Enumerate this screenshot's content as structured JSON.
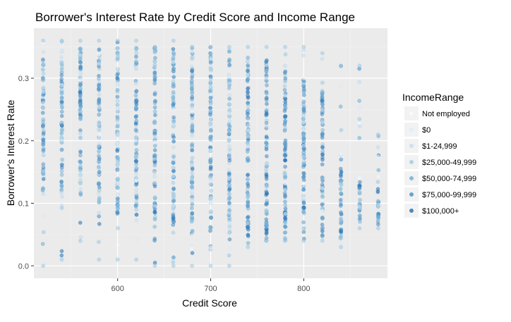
{
  "chart_data": {
    "type": "scatter",
    "title": "Borrower's Interest Rate by Credit Score and Income Range",
    "xlabel": "Credit Score",
    "ylabel": "Borrower's Interest Rate",
    "xlim": [
      510,
      890
    ],
    "ylim": [
      -0.02,
      0.38
    ],
    "x_ticks": [
      {
        "value": 600,
        "label": "600"
      },
      {
        "value": 700,
        "label": "700"
      },
      {
        "value": 800,
        "label": "800"
      }
    ],
    "y_ticks": [
      {
        "value": 0.0,
        "label": "0.0"
      },
      {
        "value": 0.1,
        "label": "0.1"
      },
      {
        "value": 0.2,
        "label": "0.2"
      },
      {
        "value": 0.3,
        "label": "0.3"
      }
    ],
    "background": "#ebebeb",
    "grid": true,
    "legend": {
      "title": "IncomeRange",
      "placement": "right",
      "entries": [
        {
          "name": "Not employed",
          "color": "#f7fbff"
        },
        {
          "name": "$0",
          "color": "#deebf7"
        },
        {
          "name": "$1-24,999",
          "color": "#c6dbef"
        },
        {
          "name": "$25,000-49,999",
          "color": "#9ecae1"
        },
        {
          "name": "$50,000-74,999",
          "color": "#6baed6"
        },
        {
          "name": "$75,000-99,999",
          "color": "#4292c6"
        },
        {
          "name": "$100,000+",
          "color": "#2171b5"
        }
      ]
    },
    "columns": [
      {
        "x": 520,
        "ymin": 0.0,
        "ymax": 0.36,
        "dense_min": 0.12,
        "dense_max": 0.35
      },
      {
        "x": 540,
        "ymin": 0.01,
        "ymax": 0.36,
        "dense_min": 0.12,
        "dense_max": 0.35
      },
      {
        "x": 560,
        "ymin": 0.04,
        "ymax": 0.36,
        "dense_min": 0.1,
        "dense_max": 0.35
      },
      {
        "x": 580,
        "ymin": 0.01,
        "ymax": 0.36,
        "dense_min": 0.1,
        "dense_max": 0.35
      },
      {
        "x": 600,
        "ymin": 0.01,
        "ymax": 0.36,
        "dense_min": 0.08,
        "dense_max": 0.35
      },
      {
        "x": 620,
        "ymin": 0.01,
        "ymax": 0.36,
        "dense_min": 0.07,
        "dense_max": 0.35
      },
      {
        "x": 640,
        "ymin": 0.0,
        "ymax": 0.35,
        "dense_min": 0.06,
        "dense_max": 0.35
      },
      {
        "x": 660,
        "ymin": 0.0,
        "ymax": 0.36,
        "dense_min": 0.05,
        "dense_max": 0.35
      },
      {
        "x": 680,
        "ymin": 0.0,
        "ymax": 0.35,
        "dense_min": 0.05,
        "dense_max": 0.35
      },
      {
        "x": 700,
        "ymin": 0.0,
        "ymax": 0.35,
        "dense_min": 0.05,
        "dense_max": 0.35
      },
      {
        "x": 720,
        "ymin": 0.0,
        "ymax": 0.35,
        "dense_min": 0.04,
        "dense_max": 0.35
      },
      {
        "x": 740,
        "ymin": 0.03,
        "ymax": 0.35,
        "dense_min": 0.04,
        "dense_max": 0.34
      },
      {
        "x": 760,
        "ymin": 0.04,
        "ymax": 0.35,
        "dense_min": 0.04,
        "dense_max": 0.34
      },
      {
        "x": 780,
        "ymin": 0.04,
        "ymax": 0.35,
        "dense_min": 0.04,
        "dense_max": 0.32
      },
      {
        "x": 800,
        "ymin": 0.04,
        "ymax": 0.35,
        "dense_min": 0.04,
        "dense_max": 0.3
      },
      {
        "x": 820,
        "ymin": 0.04,
        "ymax": 0.34,
        "dense_min": 0.04,
        "dense_max": 0.28
      },
      {
        "x": 840,
        "ymin": 0.03,
        "ymax": 0.32,
        "dense_min": 0.04,
        "dense_max": 0.16
      },
      {
        "x": 860,
        "ymin": 0.06,
        "ymax": 0.32,
        "dense_min": 0.07,
        "dense_max": 0.14
      },
      {
        "x": 880,
        "ymin": 0.06,
        "ymax": 0.21,
        "dense_min": 0.06,
        "dense_max": 0.12
      }
    ]
  }
}
